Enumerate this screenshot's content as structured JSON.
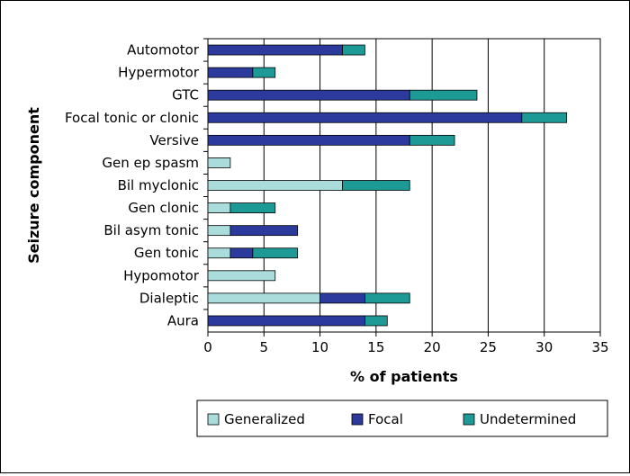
{
  "chart_data": {
    "type": "bar",
    "orientation": "horizontal",
    "stacked": true,
    "xlabel": "% of patients",
    "ylabel": "Seizure component",
    "xlim": [
      0,
      35
    ],
    "xticks": [
      0,
      5,
      10,
      15,
      20,
      25,
      30,
      35
    ],
    "grid": "vertical",
    "legend_position": "bottom",
    "categories": [
      "Automotor",
      "Hypermotor",
      "GTC",
      "Focal tonic or clonic",
      "Versive",
      "Gen ep spasm",
      "Bil myclonic",
      "Gen clonic",
      "Bil asym tonic",
      "Gen tonic",
      "Hypomotor",
      "Dialeptic",
      "Aura"
    ],
    "series": [
      {
        "name": "Generalized",
        "color": "#aadcdc",
        "values": [
          0,
          0,
          0,
          0,
          0,
          2,
          12,
          2,
          2,
          2,
          6,
          10,
          0
        ]
      },
      {
        "name": "Focal",
        "color": "#2b3a9c",
        "values": [
          12,
          4,
          18,
          28,
          18,
          0,
          0,
          0,
          6,
          2,
          0,
          4,
          14
        ]
      },
      {
        "name": "Undetermined",
        "color": "#1e9a96",
        "values": [
          2,
          2,
          6,
          4,
          4,
          0,
          6,
          4,
          0,
          4,
          0,
          4,
          2
        ]
      }
    ]
  }
}
